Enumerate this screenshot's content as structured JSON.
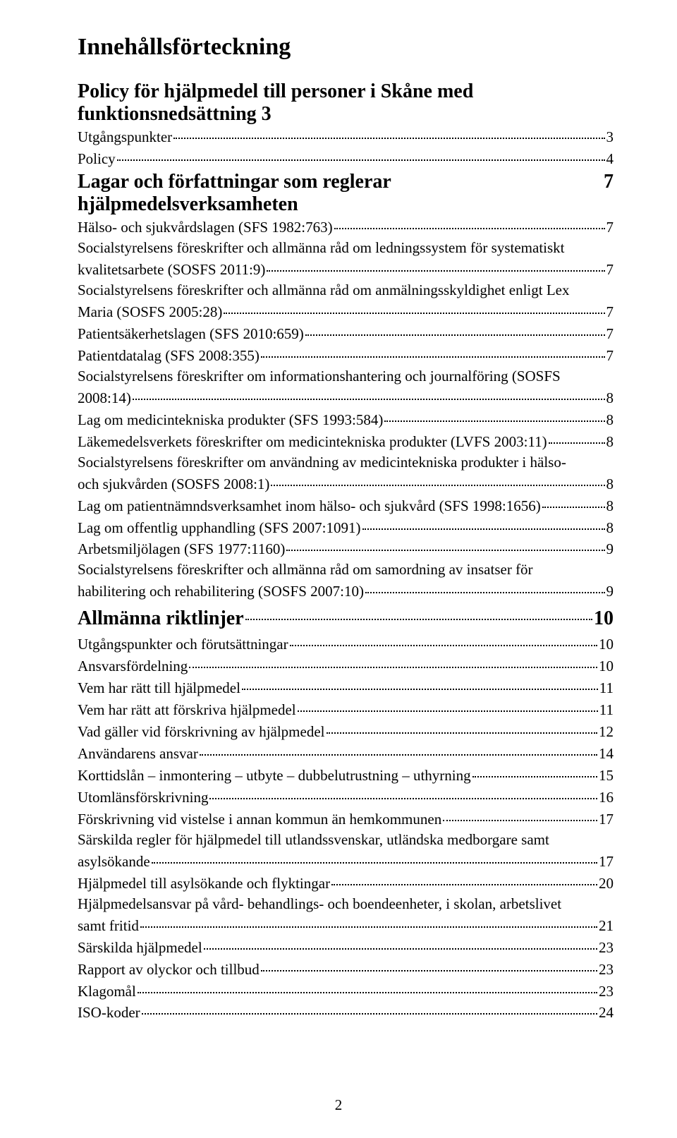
{
  "title": "Innehållsförteckning",
  "page_number": "2",
  "section1": {
    "title_text": "Policy för hjälpmedel till personer i Skåne med  funktionsnedsättning",
    "title_page": "3",
    "entries": [
      {
        "text": "Utgångspunkter",
        "page": "3"
      },
      {
        "text": "Policy",
        "page": "4"
      }
    ]
  },
  "section2": {
    "title_text": "Lagar och författningar som reglerar hjälpmedelsverksamheten",
    "title_page": "7",
    "entries": [
      {
        "text": "Hälso- och sjukvårdslagen (SFS 1982:763)",
        "page": "7"
      },
      {
        "text1": "Socialstyrelsens föreskrifter och allmänna råd om ledningssystem för systematiskt",
        "text2": "kvalitetsarbete (SOSFS 2011:9)",
        "page": "7"
      },
      {
        "text1": "Socialstyrelsens föreskrifter och allmänna råd om anmälningsskyldighet enligt Lex",
        "text2": "Maria (SOSFS 2005:28)",
        "page": "7"
      },
      {
        "text": "Patientsäkerhetslagen (SFS 2010:659)",
        "page": "7"
      },
      {
        "text": "Patientdatalag (SFS 2008:355)",
        "page": "7"
      },
      {
        "text1": "Socialstyrelsens föreskrifter om informationshantering och journalföring (SOSFS",
        "text2": "2008:14)",
        "page": "8"
      },
      {
        "text": "Lag om medicintekniska produkter (SFS 1993:584)",
        "page": "8"
      },
      {
        "text": "Läkemedelsverkets föreskrifter om medicintekniska produkter (LVFS 2003:11)",
        "page": "8"
      },
      {
        "text1": "Socialstyrelsens föreskrifter om användning av medicintekniska produkter i hälso-",
        "text2": "och sjukvården (SOSFS 2008:1)",
        "page": "8"
      },
      {
        "text": "Lag om patientnämndsverksamhet inom hälso- och sjukvård (SFS 1998:1656)",
        "page": "8"
      },
      {
        "text": "Lag om offentlig upphandling (SFS 2007:1091)",
        "page": "8"
      },
      {
        "text": "Arbetsmiljölagen (SFS 1977:1160)",
        "page": "9"
      },
      {
        "text1": "Socialstyrelsens föreskrifter och allmänna råd om samordning av insatser för",
        "text2": "habilitering och rehabilitering (SOSFS 2007:10)",
        "page": "9"
      }
    ]
  },
  "section3": {
    "title_text": "Allmänna riktlinjer",
    "title_page": "10",
    "entries": [
      {
        "text": "Utgångspunkter och förutsättningar",
        "page": "10"
      },
      {
        "text": "Ansvarsfördelning",
        "page": "10"
      },
      {
        "text": "Vem har rätt till hjälpmedel",
        "page": "11"
      },
      {
        "text": "Vem har rätt att förskriva hjälpmedel",
        "page": "11"
      },
      {
        "text": "Vad gäller vid förskrivning av hjälpmedel",
        "page": "12"
      },
      {
        "text": "Användarens ansvar",
        "page": "14"
      },
      {
        "text": "Korttidslån – inmontering – utbyte – dubbelutrustning – uthyrning",
        "page": "15"
      },
      {
        "text": "Utomlänsförskrivning",
        "page": "16"
      },
      {
        "text": "Förskrivning vid vistelse i annan kommun än hemkommunen",
        "page": "17"
      },
      {
        "text1": "Särskilda regler för hjälpmedel till utlandssvenskar, utländska medborgare samt",
        "text2": "asylsökande",
        "page": "17"
      },
      {
        "text": "Hjälpmedel till asylsökande och flyktingar",
        "page": "20"
      },
      {
        "text1": "Hjälpmedelsansvar på vård- behandlings- och boendeenheter, i skolan, arbetslivet",
        "text2": "samt fritid",
        "page": "21"
      },
      {
        "text": "Särskilda hjälpmedel",
        "page": "23"
      },
      {
        "text": "Rapport av olyckor och tillbud",
        "page": "23"
      },
      {
        "text": "Klagomål",
        "page": "23"
      },
      {
        "text": "ISO-koder",
        "page": "24"
      }
    ]
  }
}
